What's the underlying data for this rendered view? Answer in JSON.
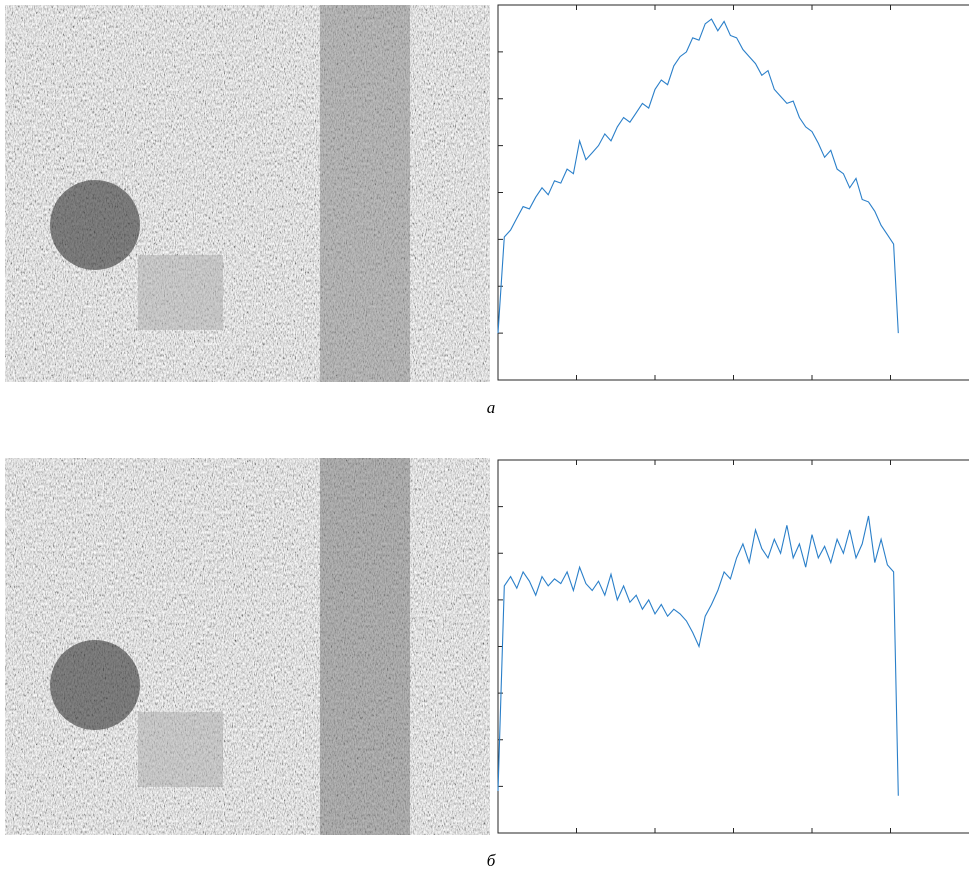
{
  "chart_data": [
    {
      "type": "line",
      "caption": "а",
      "color": "#2a7fc9",
      "x": [
        0,
        4,
        8,
        12,
        16,
        20,
        24,
        28,
        32,
        36,
        40,
        44,
        48,
        52,
        56,
        60,
        64,
        68,
        72,
        76,
        80,
        84,
        88,
        92,
        96,
        100,
        104,
        108,
        112,
        116,
        120,
        124,
        128,
        132,
        136,
        140,
        144,
        148,
        152,
        156,
        160,
        164,
        168,
        172,
        176,
        180,
        184,
        188,
        192,
        196,
        200,
        204,
        208,
        212,
        216,
        220,
        224,
        228,
        232,
        236,
        240,
        244,
        248,
        252,
        255
      ],
      "values": [
        1000,
        3050,
        3200,
        3450,
        3700,
        3650,
        3900,
        4100,
        3950,
        4250,
        4200,
        4500,
        4400,
        5100,
        4700,
        4850,
        5000,
        5250,
        5100,
        5400,
        5600,
        5500,
        5700,
        5900,
        5800,
        6200,
        6400,
        6300,
        6700,
        6900,
        7000,
        7300,
        7250,
        7600,
        7700,
        7450,
        7650,
        7350,
        7300,
        7050,
        6900,
        6750,
        6500,
        6600,
        6200,
        6050,
        5900,
        5950,
        5600,
        5400,
        5300,
        5050,
        4750,
        4900,
        4500,
        4400,
        4100,
        4300,
        3850,
        3800,
        3600,
        3300,
        3100,
        2900,
        1000
      ],
      "xlim": [
        0,
        300
      ],
      "ylim": [
        0,
        8000
      ],
      "xticks": [
        50,
        100,
        150,
        200,
        250
      ],
      "yticks": [
        1000,
        2000,
        3000,
        4000,
        5000,
        6000,
        7000
      ]
    },
    {
      "type": "line",
      "caption": "б",
      "color": "#2a7fc9",
      "x": [
        0,
        4,
        8,
        12,
        16,
        20,
        24,
        28,
        32,
        36,
        40,
        44,
        48,
        52,
        56,
        60,
        64,
        68,
        72,
        76,
        80,
        84,
        88,
        92,
        96,
        100,
        104,
        108,
        112,
        116,
        120,
        124,
        128,
        132,
        136,
        140,
        144,
        148,
        152,
        156,
        160,
        164,
        168,
        172,
        176,
        180,
        184,
        188,
        192,
        196,
        200,
        204,
        208,
        212,
        216,
        220,
        224,
        228,
        232,
        236,
        240,
        244,
        248,
        252,
        255
      ],
      "values": [
        900,
        5300,
        5500,
        5250,
        5600,
        5400,
        5100,
        5500,
        5300,
        5450,
        5350,
        5600,
        5200,
        5700,
        5350,
        5200,
        5400,
        5100,
        5550,
        5000,
        5300,
        4950,
        5100,
        4800,
        5000,
        4700,
        4900,
        4650,
        4800,
        4700,
        4550,
        4300,
        4000,
        4650,
        4900,
        5200,
        5600,
        5450,
        5900,
        6200,
        5800,
        6500,
        6100,
        5900,
        6300,
        6000,
        6600,
        5900,
        6200,
        5700,
        6400,
        5900,
        6150,
        5800,
        6300,
        6000,
        6500,
        5900,
        6200,
        6800,
        5800,
        6300,
        5750,
        5600,
        800
      ],
      "xlim": [
        0,
        300
      ],
      "ylim": [
        0,
        8000
      ],
      "xticks": [
        50,
        100,
        150,
        200,
        250
      ],
      "yticks": [
        1000,
        2000,
        3000,
        4000,
        5000,
        6000,
        7000
      ]
    }
  ]
}
